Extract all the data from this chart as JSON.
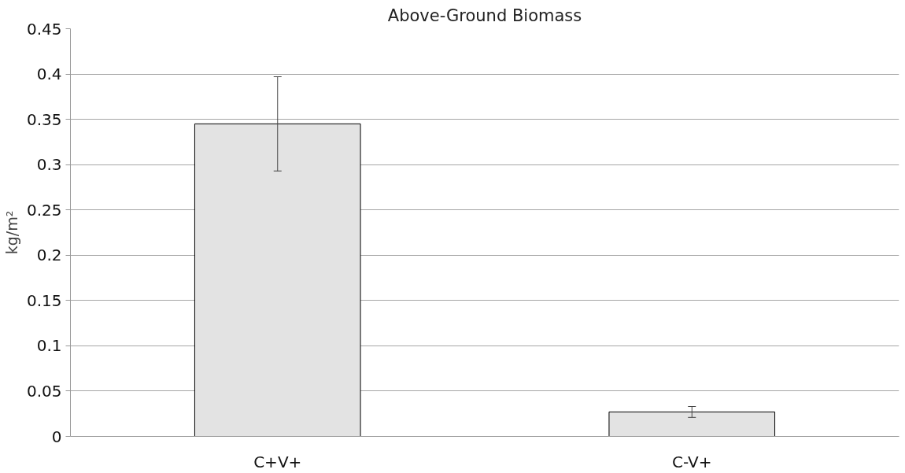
{
  "chart_data": {
    "type": "bar",
    "title": "Above-Ground Biomass",
    "ylabel": "kg/m²",
    "categories": [
      "C+V+",
      "C-V+"
    ],
    "series": [
      {
        "color": "#e3e3e3",
        "values": [
          0.345,
          0.027
        ],
        "errors": [
          0.052,
          0.006
        ]
      }
    ],
    "ylim": [
      0,
      0.45
    ],
    "yticks": [
      0,
      0.05,
      0.1,
      0.15,
      0.2,
      0.25,
      0.3,
      0.35,
      0.4,
      0.45
    ],
    "grid": "y"
  }
}
